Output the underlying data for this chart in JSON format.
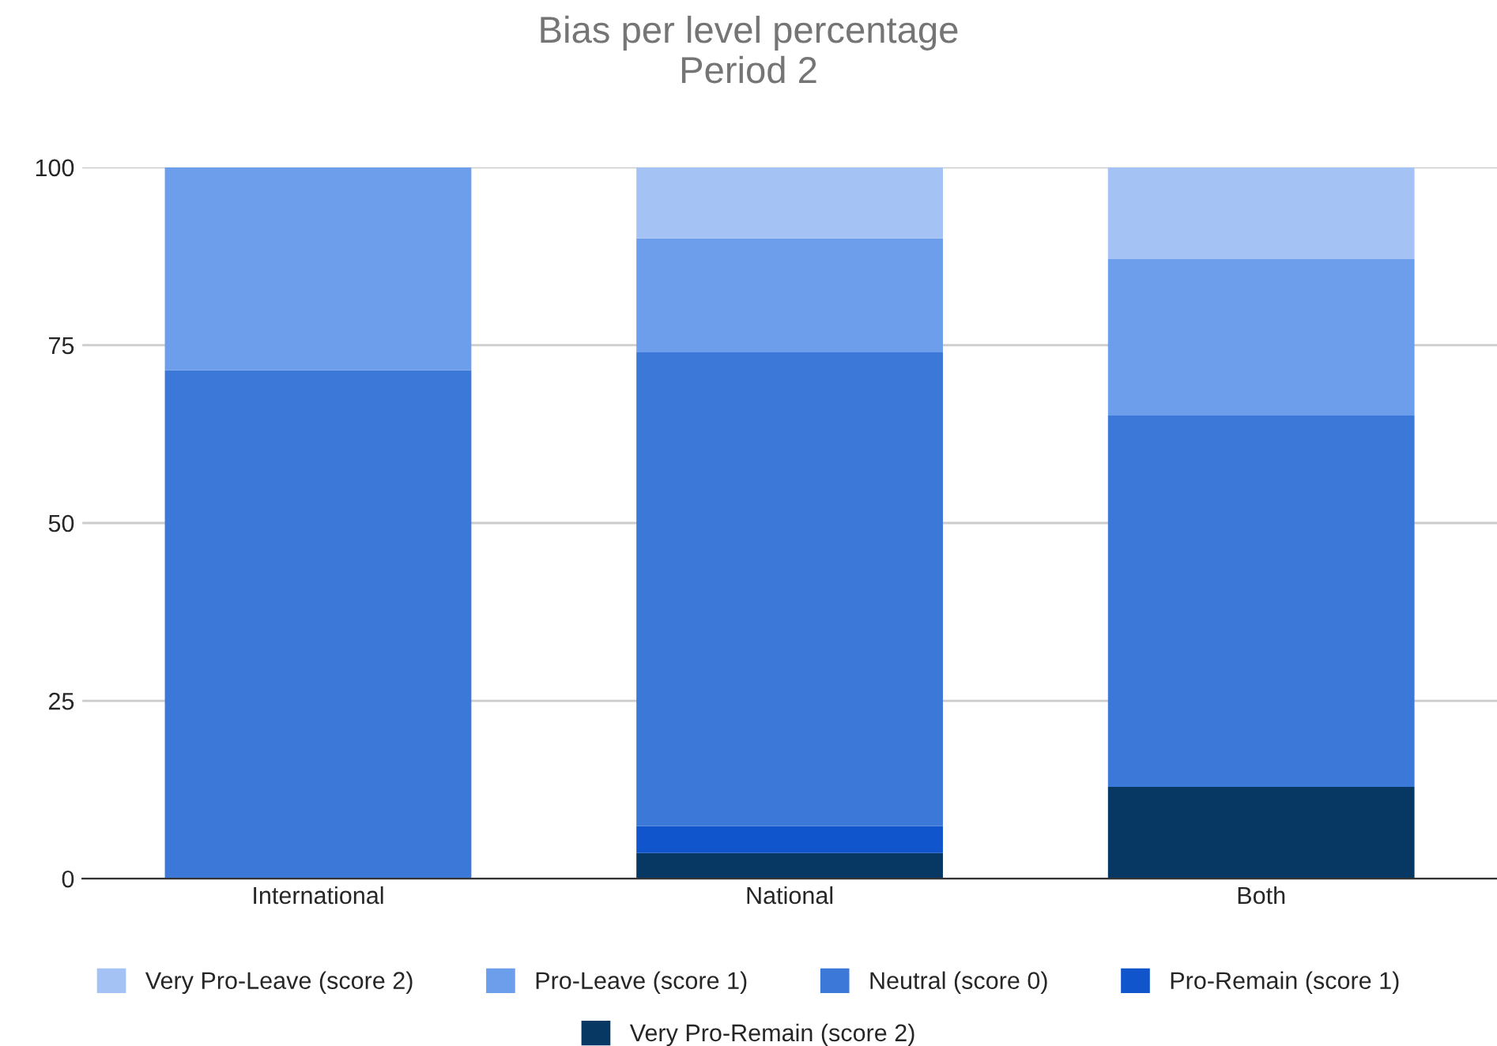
{
  "chart_data": {
    "type": "bar",
    "title": "Bias per level percentage",
    "subtitle": "Period 2",
    "categories": [
      "International",
      "National",
      "Both"
    ],
    "stacked": true,
    "series": [
      {
        "name": "Very Pro-Remain (score 2)",
        "color": "#073763",
        "values": [
          0,
          3.6,
          12.9
        ]
      },
      {
        "name": "Pro-Remain (score 1)",
        "color": "#1155cc",
        "values": [
          0,
          3.8,
          0
        ]
      },
      {
        "name": "Neutral (score 0)",
        "color": "#3c78d8",
        "values": [
          71.5,
          66.6,
          52.2
        ]
      },
      {
        "name": "Pro-Leave (score 1)",
        "color": "#6d9eeb",
        "values": [
          28.5,
          16,
          22
        ]
      },
      {
        "name": "Very Pro-Leave (score 2)",
        "color": "#a4c2f4",
        "values": [
          0,
          10,
          12.9
        ]
      }
    ],
    "ylim": [
      0,
      100
    ],
    "yticks": [
      0,
      25,
      50,
      75,
      100
    ],
    "grid": "y",
    "legend": "bottom"
  }
}
